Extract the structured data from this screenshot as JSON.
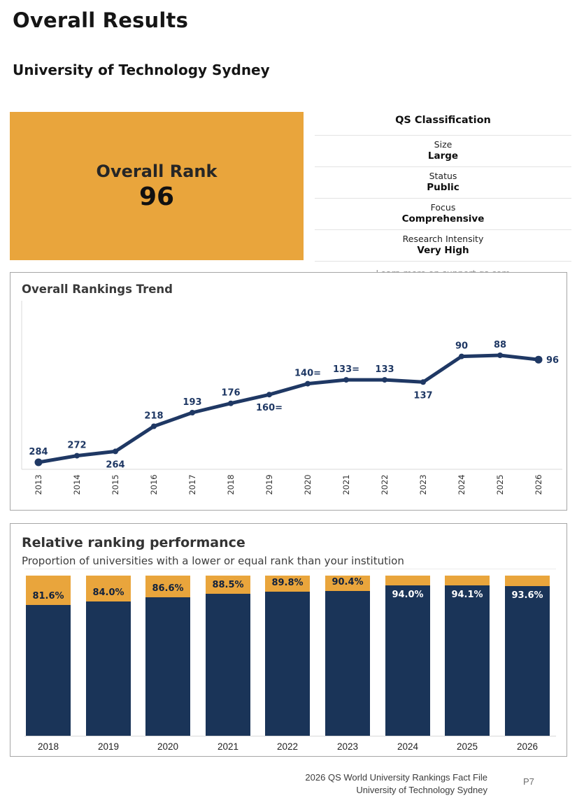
{
  "page": {
    "title": "Overall Results",
    "subtitle": "University of Technology Sydney"
  },
  "rank_card": {
    "label": "Overall Rank",
    "value": "96"
  },
  "classification": {
    "title": "QS Classification",
    "rows": [
      {
        "label": "Size",
        "value": "Large"
      },
      {
        "label": "Status",
        "value": "Public"
      },
      {
        "label": "Focus",
        "value": "Comprehensive"
      },
      {
        "label": "Research Intensity",
        "value": "Very High"
      }
    ],
    "footnote": "Learn more on support.qs.com"
  },
  "chart_data": [
    {
      "type": "line",
      "title": "Overall Rankings Trend",
      "x": [
        "2013",
        "2014",
        "2015",
        "2016",
        "2017",
        "2018",
        "2019",
        "2020",
        "2021",
        "2022",
        "2023",
        "2024",
        "2025",
        "2026"
      ],
      "values": [
        284,
        272,
        264,
        218,
        193,
        176,
        160,
        140,
        133,
        133,
        137,
        90,
        88,
        96
      ],
      "point_labels": [
        "284",
        "272",
        "264",
        "218",
        "193",
        "176",
        "160=",
        "140=",
        "133=",
        "133",
        "137",
        "90",
        "88",
        "96"
      ],
      "label_side": [
        "above",
        "above",
        "below",
        "above",
        "above",
        "above",
        "below",
        "above",
        "above",
        "above",
        "below",
        "above",
        "above",
        "right"
      ],
      "line_color": "#1F3864",
      "axis_color": "#d9d9d9",
      "yaxis_inverted": true,
      "grid": false,
      "legend": "none"
    },
    {
      "type": "bar",
      "title": "Relative ranking performance",
      "subtitle": "Proportion of universities with a lower or equal rank than your institution",
      "categories": [
        "2018",
        "2019",
        "2020",
        "2021",
        "2022",
        "2023",
        "2024",
        "2025",
        "2026"
      ],
      "values": [
        81.6,
        84.0,
        86.6,
        88.5,
        89.8,
        90.4,
        94.0,
        94.1,
        93.6
      ],
      "value_labels": [
        "81.6%",
        "84.0%",
        "86.6%",
        "88.5%",
        "89.8%",
        "90.4%",
        "94.0%",
        "94.1%",
        "93.6%"
      ],
      "ylim": [
        0,
        100
      ],
      "bar_color": "#1A3458",
      "remainder_color": "#E9A53C",
      "grid": false,
      "legend": "none"
    }
  ],
  "footer": {
    "line1": "2026 QS World University Rankings Fact File",
    "line2": "University of Technology Sydney",
    "page_number": "P7"
  },
  "colors": {
    "accent_orange": "#E9A53C",
    "brand_navy": "#1F3864",
    "bar_navy": "#1A3458",
    "panel_border": "#a6a6a6",
    "separator": "#e3e3e3",
    "muted_text": "#979797"
  }
}
